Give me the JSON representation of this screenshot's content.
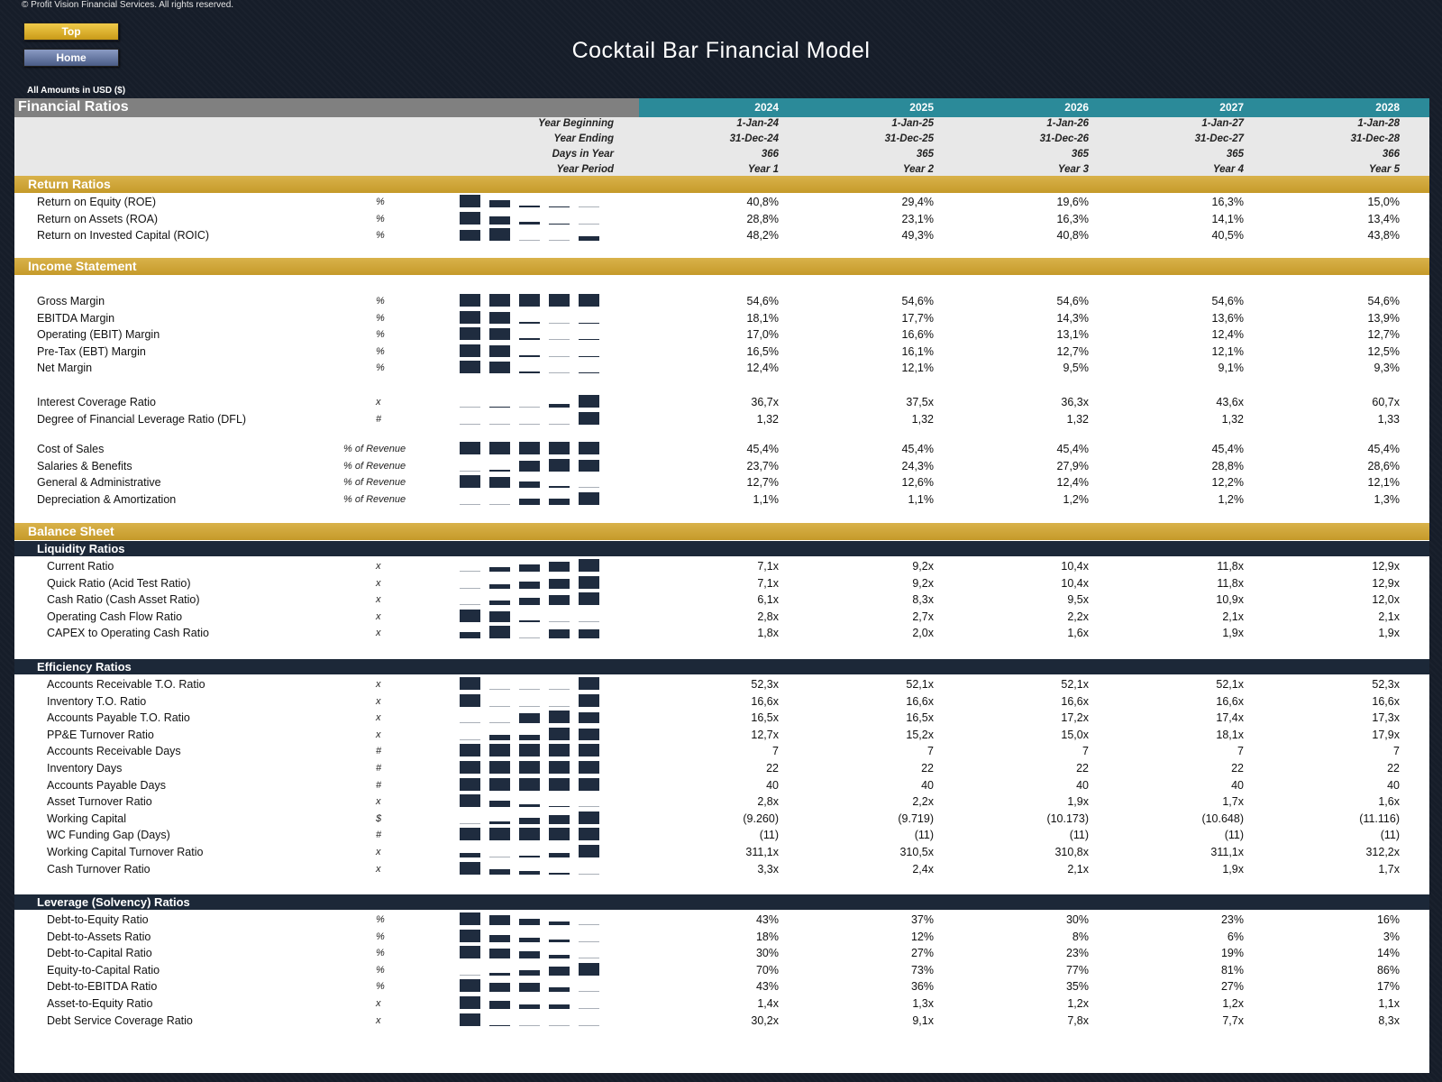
{
  "copyright": "© Profit Vision Financial Services. All rights reserved.",
  "nav": {
    "top_label": "Top",
    "home_label": "Home"
  },
  "title": "Cocktail Bar Financial Model",
  "amounts_note": "All Amounts in  USD ($)",
  "sheet": {
    "heading": "Financial Ratios",
    "years": [
      "2024",
      "2025",
      "2026",
      "2027",
      "2028"
    ],
    "info_rows": [
      {
        "label": "Year Beginning",
        "values": [
          "1-Jan-24",
          "1-Jan-25",
          "1-Jan-26",
          "1-Jan-27",
          "1-Jan-28"
        ]
      },
      {
        "label": "Year Ending",
        "values": [
          "31-Dec-24",
          "31-Dec-25",
          "31-Dec-26",
          "31-Dec-27",
          "31-Dec-28"
        ]
      },
      {
        "label": "Days in Year",
        "values": [
          "366",
          "365",
          "365",
          "365",
          "366"
        ]
      },
      {
        "label": "Year Period",
        "values": [
          "Year 1",
          "Year 2",
          "Year 3",
          "Year 4",
          "Year 5"
        ]
      }
    ]
  },
  "sections": [
    {
      "title": "Return Ratios",
      "groups": [
        {
          "rows": [
            {
              "label": "Return on Equity (ROE)",
              "unit": "%",
              "values": [
                "40,8%",
                "29,4%",
                "19,6%",
                "16,3%",
                "15,0%"
              ],
              "nums": [
                40.8,
                29.4,
                19.6,
                16.3,
                15.0
              ]
            },
            {
              "label": "Return on Assets (ROA)",
              "unit": "%",
              "values": [
                "28,8%",
                "23,1%",
                "16,3%",
                "14,1%",
                "13,4%"
              ],
              "nums": [
                28.8,
                23.1,
                16.3,
                14.1,
                13.4
              ]
            },
            {
              "label": "Return on Invested Capital (ROIC)",
              "unit": "%",
              "values": [
                "48,2%",
                "49,3%",
                "40,8%",
                "40,5%",
                "43,8%"
              ],
              "nums": [
                48.2,
                49.3,
                40.8,
                40.5,
                43.8
              ]
            }
          ]
        }
      ]
    },
    {
      "title": "Income Statement",
      "groups": [
        {
          "rows": [
            {
              "label": "Gross Margin",
              "unit": "%",
              "values": [
                "54,6%",
                "54,6%",
                "54,6%",
                "54,6%",
                "54,6%"
              ],
              "nums": [
                54.6,
                54.6,
                54.6,
                54.6,
                54.6
              ]
            },
            {
              "label": "EBITDA Margin",
              "unit": "%",
              "values": [
                "18,1%",
                "17,7%",
                "14,3%",
                "13,6%",
                "13,9%"
              ],
              "nums": [
                18.1,
                17.7,
                14.3,
                13.6,
                13.9
              ]
            },
            {
              "label": "Operating (EBIT) Margin",
              "unit": "%",
              "values": [
                "17,0%",
                "16,6%",
                "13,1%",
                "12,4%",
                "12,7%"
              ],
              "nums": [
                17.0,
                16.6,
                13.1,
                12.4,
                12.7
              ]
            },
            {
              "label": "Pre-Tax (EBT) Margin",
              "unit": "%",
              "values": [
                "16,5%",
                "16,1%",
                "12,7%",
                "12,1%",
                "12,5%"
              ],
              "nums": [
                16.5,
                16.1,
                12.7,
                12.1,
                12.5
              ]
            },
            {
              "label": "Net Margin",
              "unit": "%",
              "values": [
                "12,4%",
                "12,1%",
                "9,5%",
                "9,1%",
                "9,3%"
              ],
              "nums": [
                12.4,
                12.1,
                9.5,
                9.1,
                9.3
              ]
            }
          ]
        },
        {
          "rows": [
            {
              "label": "Interest Coverage Ratio",
              "unit": "x",
              "values": [
                "36,7x",
                "37,5x",
                "36,3x",
                "43,6x",
                "60,7x"
              ],
              "nums": [
                36.7,
                37.5,
                36.3,
                43.6,
                60.7
              ]
            },
            {
              "label": "Degree of Financial Leverage Ratio (DFL)",
              "unit": "#",
              "values": [
                "1,32",
                "1,32",
                "1,32",
                "1,32",
                "1,33"
              ],
              "nums": [
                1.32,
                1.32,
                1.32,
                1.32,
                1.33
              ]
            }
          ]
        },
        {
          "rows": [
            {
              "label": "Cost of Sales",
              "unit": "% of Revenue",
              "values": [
                "45,4%",
                "45,4%",
                "45,4%",
                "45,4%",
                "45,4%"
              ],
              "nums": [
                45.4,
                45.4,
                45.4,
                45.4,
                45.4
              ]
            },
            {
              "label": "Salaries & Benefits",
              "unit": "% of Revenue",
              "values": [
                "23,7%",
                "24,3%",
                "27,9%",
                "28,8%",
                "28,6%"
              ],
              "nums": [
                23.7,
                24.3,
                27.9,
                28.8,
                28.6
              ]
            },
            {
              "label": "General & Administrative",
              "unit": "% of Revenue",
              "values": [
                "12,7%",
                "12,6%",
                "12,4%",
                "12,2%",
                "12,1%"
              ],
              "nums": [
                12.7,
                12.6,
                12.4,
                12.2,
                12.1
              ]
            },
            {
              "label": "Depreciation & Amortization",
              "unit": "% of Revenue",
              "values": [
                "1,1%",
                "1,1%",
                "1,2%",
                "1,2%",
                "1,3%"
              ],
              "nums": [
                1.1,
                1.1,
                1.2,
                1.2,
                1.3
              ]
            }
          ]
        }
      ]
    },
    {
      "title": "Balance Sheet",
      "subsections": [
        {
          "title": "Liquidity Ratios",
          "rows": [
            {
              "label": "Current Ratio",
              "unit": "x",
              "values": [
                "7,1x",
                "9,2x",
                "10,4x",
                "11,8x",
                "12,9x"
              ],
              "nums": [
                7.1,
                9.2,
                10.4,
                11.8,
                12.9
              ]
            },
            {
              "label": "Quick Ratio (Acid Test Ratio)",
              "unit": "x",
              "values": [
                "7,1x",
                "9,2x",
                "10,4x",
                "11,8x",
                "12,9x"
              ],
              "nums": [
                7.1,
                9.2,
                10.4,
                11.8,
                12.9
              ]
            },
            {
              "label": "Cash Ratio (Cash Asset Ratio)",
              "unit": "x",
              "values": [
                "6,1x",
                "8,3x",
                "9,5x",
                "10,9x",
                "12,0x"
              ],
              "nums": [
                6.1,
                8.3,
                9.5,
                10.9,
                12.0
              ]
            },
            {
              "label": "Operating Cash Flow Ratio",
              "unit": "x",
              "values": [
                "2,8x",
                "2,7x",
                "2,2x",
                "2,1x",
                "2,1x"
              ],
              "nums": [
                2.8,
                2.7,
                2.2,
                2.1,
                2.1
              ]
            },
            {
              "label": "CAPEX to Operating Cash Ratio",
              "unit": "x",
              "values": [
                "1,8x",
                "2,0x",
                "1,6x",
                "1,9x",
                "1,9x"
              ],
              "nums": [
                1.8,
                2.0,
                1.6,
                1.9,
                1.9
              ]
            }
          ]
        },
        {
          "title": "Efficiency Ratios",
          "rows": [
            {
              "label": "Accounts Receivable T.O. Ratio",
              "unit": "x",
              "values": [
                "52,3x",
                "52,1x",
                "52,1x",
                "52,1x",
                "52,3x"
              ],
              "nums": [
                52.3,
                52.1,
                52.1,
                52.1,
                52.3
              ]
            },
            {
              "label": "Inventory T.O. Ratio",
              "unit": "x",
              "values": [
                "16,6x",
                "16,6x",
                "16,6x",
                "16,6x",
                "16,6x"
              ],
              "nums": [
                16.61,
                16.6,
                16.6,
                16.6,
                16.61
              ]
            },
            {
              "label": "Accounts Payable T.O. Ratio",
              "unit": "x",
              "values": [
                "16,5x",
                "16,5x",
                "17,2x",
                "17,4x",
                "17,3x"
              ],
              "nums": [
                16.5,
                16.5,
                17.2,
                17.4,
                17.3
              ]
            },
            {
              "label": "PP&E Turnover Ratio",
              "unit": "x",
              "values": [
                "12,7x",
                "15,2x",
                "15,0x",
                "18,1x",
                "17,9x"
              ],
              "nums": [
                12.7,
                15.2,
                15.0,
                18.1,
                17.9
              ]
            },
            {
              "label": "Accounts Receivable Days",
              "unit": "#",
              "values": [
                "7",
                "7",
                "7",
                "7",
                "7"
              ],
              "nums": [
                7,
                7,
                7,
                7,
                7
              ]
            },
            {
              "label": "Inventory Days",
              "unit": "#",
              "values": [
                "22",
                "22",
                "22",
                "22",
                "22"
              ],
              "nums": [
                22,
                22,
                22,
                22,
                22
              ]
            },
            {
              "label": "Accounts Payable Days",
              "unit": "#",
              "values": [
                "40",
                "40",
                "40",
                "40",
                "40"
              ],
              "nums": [
                40,
                40,
                40,
                40,
                40
              ]
            },
            {
              "label": "Asset Turnover Ratio",
              "unit": "x",
              "values": [
                "2,8x",
                "2,2x",
                "1,9x",
                "1,7x",
                "1,6x"
              ],
              "nums": [
                2.8,
                2.2,
                1.9,
                1.7,
                1.6
              ]
            },
            {
              "label": "Working Capital",
              "unit": "$",
              "values": [
                "(9.260)",
                "(9.719)",
                "(10.173)",
                "(10.648)",
                "(11.116)"
              ],
              "nums": [
                -9260,
                -9719,
                -10173,
                -10648,
                -11116
              ]
            },
            {
              "label": "WC Funding Gap (Days)",
              "unit": "#",
              "values": [
                "(11)",
                "(11)",
                "(11)",
                "(11)",
                "(11)"
              ],
              "nums": [
                -11,
                -11,
                -11,
                -11,
                -11
              ]
            },
            {
              "label": "Working Capital Turnover Ratio",
              "unit": "x",
              "values": [
                "311,1x",
                "310,5x",
                "310,8x",
                "311,1x",
                "312,2x"
              ],
              "nums": [
                311.1,
                310.5,
                310.8,
                311.1,
                312.2
              ]
            },
            {
              "label": "Cash Turnover Ratio",
              "unit": "x",
              "values": [
                "3,3x",
                "2,4x",
                "2,1x",
                "1,9x",
                "1,7x"
              ],
              "nums": [
                3.3,
                2.4,
                2.1,
                1.9,
                1.7
              ]
            }
          ]
        },
        {
          "title": "Leverage (Solvency) Ratios",
          "rows": [
            {
              "label": "Debt-to-Equity Ratio",
              "unit": "%",
              "values": [
                "43%",
                "37%",
                "30%",
                "23%",
                "16%"
              ],
              "nums": [
                43,
                37,
                30,
                23,
                16
              ]
            },
            {
              "label": "Debt-to-Assets Ratio",
              "unit": "%",
              "values": [
                "18%",
                "12%",
                "8%",
                "6%",
                "3%"
              ],
              "nums": [
                18,
                12,
                8,
                6,
                3
              ]
            },
            {
              "label": "Debt-to-Capital Ratio",
              "unit": "%",
              "values": [
                "30%",
                "27%",
                "23%",
                "19%",
                "14%"
              ],
              "nums": [
                30,
                27,
                23,
                19,
                14
              ]
            },
            {
              "label": "Equity-to-Capital Ratio",
              "unit": "%",
              "values": [
                "70%",
                "73%",
                "77%",
                "81%",
                "86%"
              ],
              "nums": [
                70,
                73,
                77,
                81,
                86
              ]
            },
            {
              "label": "Debt-to-EBITDA Ratio",
              "unit": "%",
              "values": [
                "43%",
                "36%",
                "35%",
                "27%",
                "17%"
              ],
              "nums": [
                43,
                36,
                35,
                27,
                17
              ]
            },
            {
              "label": "Asset-to-Equity Ratio",
              "unit": "x",
              "values": [
                "1,4x",
                "1,3x",
                "1,2x",
                "1,2x",
                "1,1x"
              ],
              "nums": [
                1.4,
                1.3,
                1.2,
                1.2,
                1.1
              ]
            },
            {
              "label": "Debt Service Coverage Ratio",
              "unit": "x",
              "values": [
                "30,2x",
                "9,1x",
                "7,8x",
                "7,7x",
                "8,3x"
              ],
              "nums": [
                30.2,
                9.1,
                7.8,
                7.7,
                8.3
              ]
            }
          ]
        }
      ]
    }
  ],
  "colors": {
    "gold": "#c59a2a",
    "teal": "#2b8a99",
    "navy": "#1c2838",
    "bar": "#1f2c3f"
  }
}
